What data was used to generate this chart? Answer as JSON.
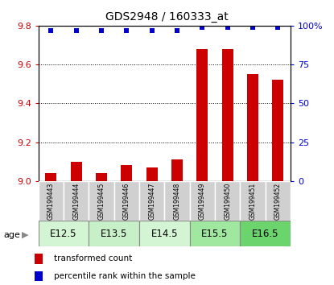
{
  "title": "GDS2948 / 160333_at",
  "samples": [
    "GSM199443",
    "GSM199444",
    "GSM199445",
    "GSM199446",
    "GSM199447",
    "GSM199448",
    "GSM199449",
    "GSM199450",
    "GSM199451",
    "GSM199452"
  ],
  "transformed_count": [
    9.04,
    9.1,
    9.04,
    9.08,
    9.07,
    9.11,
    9.68,
    9.68,
    9.55,
    9.52
  ],
  "percentile_rank": [
    97,
    97,
    97,
    97,
    97,
    97,
    99,
    99,
    99,
    99
  ],
  "ylim": [
    9.0,
    9.8
  ],
  "yticks_left": [
    9.0,
    9.2,
    9.4,
    9.6,
    9.8
  ],
  "yticks_right": [
    0,
    25,
    50,
    75,
    100
  ],
  "age_labels": [
    "E12.5",
    "E13.5",
    "E14.5",
    "E15.5",
    "E16.5"
  ],
  "age_starts": [
    0,
    2,
    4,
    6,
    8
  ],
  "age_widths": [
    2,
    2,
    2,
    2,
    2
  ],
  "age_colors": [
    "#d4f5d4",
    "#c8f0c8",
    "#d4f5d4",
    "#a0e8a0",
    "#6cd46c"
  ],
  "bar_color": "#cc0000",
  "dot_color": "#0000cc",
  "dot_marker": "s",
  "dot_size": 25,
  "bar_width": 0.45,
  "axis_color_left": "#cc0000",
  "axis_color_right": "#0000cc",
  "sample_box_color": "#d0d0d0",
  "legend_red_label": "transformed count",
  "legend_blue_label": "percentile rank within the sample",
  "age_label": "age"
}
